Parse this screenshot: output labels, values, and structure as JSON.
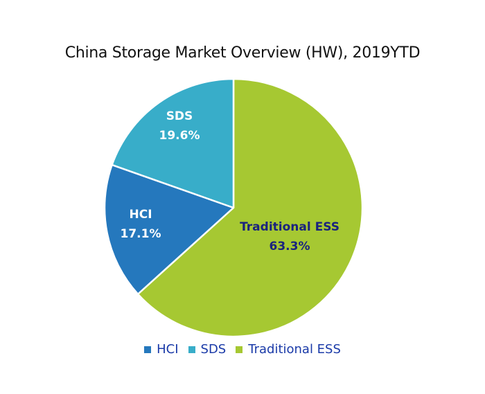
{
  "chart_data": {
    "type": "pie",
    "title": "China Storage Market Overview (HW), 2019YTD",
    "slices": [
      {
        "label": "Traditional ESS",
        "value": 63.3,
        "value_label": "63.3%",
        "color": "#a6c832",
        "label_color": "#1a237e"
      },
      {
        "label": "HCI",
        "value": 17.1,
        "value_label": "17.1%",
        "color": "#2578bd",
        "label_color": "#ffffff"
      },
      {
        "label": "SDS",
        "value": 19.6,
        "value_label": "19.6%",
        "color": "#38adc9",
        "label_color": "#ffffff"
      }
    ],
    "legend": {
      "placement": "bottom",
      "text_color": "#1a3aa8",
      "items": [
        {
          "label": "HCI",
          "color": "#2578bd"
        },
        {
          "label": "SDS",
          "color": "#38adc9"
        },
        {
          "label": "Traditional ESS",
          "color": "#a6c832"
        }
      ]
    }
  }
}
